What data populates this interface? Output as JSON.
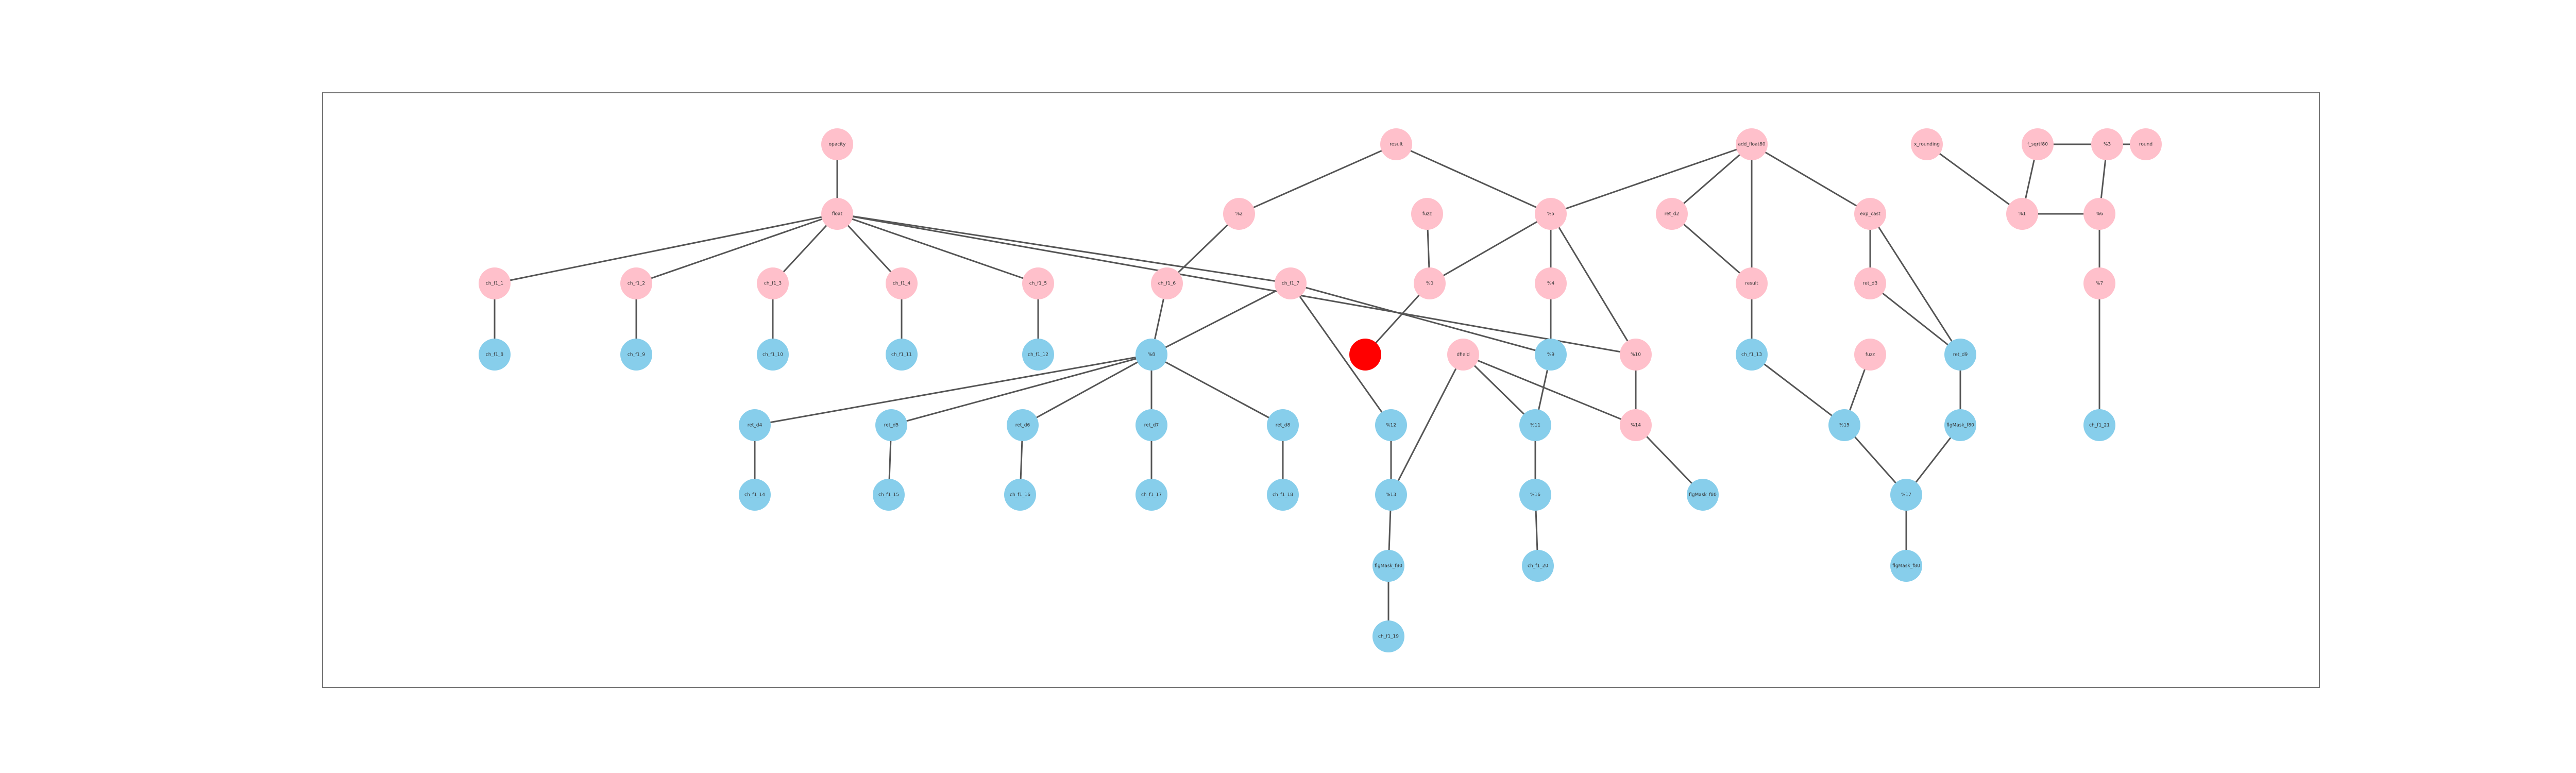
{
  "colors": {
    "pink": "#FFC0CB",
    "blue": "#87CEEB",
    "red": "#FF0000",
    "edge": "#555555",
    "frame": "#777777"
  },
  "graph": {
    "nodes": [
      {
        "id": "n1",
        "label": "opacity",
        "color": "pink"
      },
      {
        "id": "n2",
        "label": "result",
        "color": "pink"
      },
      {
        "id": "n3",
        "label": "add_float80",
        "color": "pink"
      },
      {
        "id": "n4",
        "label": "x_rounding",
        "color": "pink"
      },
      {
        "id": "n5",
        "label": "f_sqrtf80",
        "color": "pink"
      },
      {
        "id": "n6",
        "label": "round",
        "color": "pink"
      },
      {
        "id": "n7",
        "label": "fuzz",
        "color": "pink"
      },
      {
        "id": "n8",
        "label": "float",
        "color": "pink"
      },
      {
        "id": "n9",
        "label": "%2",
        "color": "pink"
      },
      {
        "id": "n10",
        "label": "%5",
        "color": "pink"
      },
      {
        "id": "n11",
        "label": "ret_d2",
        "color": "pink"
      },
      {
        "id": "n12",
        "label": "%0",
        "color": "pink"
      },
      {
        "id": "n13",
        "label": "exp_cast",
        "color": "pink"
      },
      {
        "id": "n14",
        "label": "%1",
        "color": "pink"
      },
      {
        "id": "n15",
        "label": "%3",
        "color": "pink"
      },
      {
        "id": "n16",
        "label": "ch_f1_1",
        "color": "pink"
      },
      {
        "id": "n17",
        "label": "ch_f1_2",
        "color": "pink"
      },
      {
        "id": "n18",
        "label": "ch_f1_3",
        "color": "pink"
      },
      {
        "id": "n19",
        "label": "ch_f1_4",
        "color": "pink"
      },
      {
        "id": "n20",
        "label": "ch_f1_5",
        "color": "pink"
      },
      {
        "id": "n21",
        "label": "ch_f1_6",
        "color": "pink"
      },
      {
        "id": "n22",
        "label": "ch_f1_7",
        "color": "pink"
      },
      {
        "id": "n23",
        "label": "%4",
        "color": "pink"
      },
      {
        "id": "n24",
        "label": "result",
        "color": "pink"
      },
      {
        "id": "n25",
        "label": "%7",
        "color": "pink"
      },
      {
        "id": "n26",
        "label": "ret_d3",
        "color": "pink"
      },
      {
        "id": "n27",
        "label": "%6",
        "color": "pink"
      },
      {
        "id": "n28",
        "label": "ch_f1_8",
        "color": "blue"
      },
      {
        "id": "n29",
        "label": "ch_f1_9",
        "color": "blue"
      },
      {
        "id": "n30",
        "label": "ch_f1_10",
        "color": "blue"
      },
      {
        "id": "n31",
        "label": "ch_f1_11",
        "color": "blue"
      },
      {
        "id": "n32",
        "label": "ch_f1_12",
        "color": "blue"
      },
      {
        "id": "n33",
        "label": "%8",
        "color": "blue"
      },
      {
        "id": "n34",
        "label": "",
        "color": "red"
      },
      {
        "id": "n35",
        "label": "dfield",
        "color": "pink"
      },
      {
        "id": "n36",
        "label": "%9",
        "color": "blue"
      },
      {
        "id": "n37",
        "label": "%10",
        "color": "pink"
      },
      {
        "id": "n38",
        "label": "ch_f1_13",
        "color": "blue"
      },
      {
        "id": "n39",
        "label": "fuzz",
        "color": "pink"
      },
      {
        "id": "n40",
        "label": "%11",
        "color": "blue"
      },
      {
        "id": "n41",
        "label": "ret_d4",
        "color": "blue"
      },
      {
        "id": "n42",
        "label": "ret_d5",
        "color": "blue"
      },
      {
        "id": "n43",
        "label": "ret_d6",
        "color": "blue"
      },
      {
        "id": "n44",
        "label": "ret_d7",
        "color": "blue"
      },
      {
        "id": "n45",
        "label": "ret_d8",
        "color": "blue"
      },
      {
        "id": "n46",
        "label": "ret_d9",
        "color": "blue"
      },
      {
        "id": "n47",
        "label": "%12",
        "color": "blue"
      },
      {
        "id": "n48",
        "label": "%13",
        "color": "blue"
      },
      {
        "id": "n49",
        "label": "%14",
        "color": "pink"
      },
      {
        "id": "n50",
        "label": "%15",
        "color": "blue"
      },
      {
        "id": "n51",
        "label": "ch_f1_14",
        "color": "blue"
      },
      {
        "id": "n52",
        "label": "ch_f1_15",
        "color": "blue"
      },
      {
        "id": "n53",
        "label": "ch_f1_16",
        "color": "blue"
      },
      {
        "id": "n54",
        "label": "ch_f1_17",
        "color": "blue"
      },
      {
        "id": "n55",
        "label": "ch_f1_18",
        "color": "blue"
      },
      {
        "id": "n56",
        "label": "%16",
        "color": "blue"
      },
      {
        "id": "n57",
        "label": "flgMask_f80",
        "color": "blue"
      },
      {
        "id": "n58",
        "label": "flgMask_f80",
        "color": "blue"
      },
      {
        "id": "n59",
        "label": "%17",
        "color": "blue"
      },
      {
        "id": "n60",
        "label": "flgMask_f80",
        "color": "blue"
      },
      {
        "id": "n61",
        "label": "flgMask_f80",
        "color": "blue"
      },
      {
        "id": "n62",
        "label": "ch_f1_19",
        "color": "blue"
      },
      {
        "id": "n63",
        "label": "ch_f1_20",
        "color": "blue"
      },
      {
        "id": "n64",
        "label": "ch_f1_21",
        "color": "blue"
      }
    ],
    "edges": [
      [
        "n1",
        "n8"
      ],
      [
        "n8",
        "n16"
      ],
      [
        "n8",
        "n17"
      ],
      [
        "n8",
        "n18"
      ],
      [
        "n8",
        "n19"
      ],
      [
        "n8",
        "n20"
      ],
      [
        "n8",
        "n22"
      ],
      [
        "n8",
        "n37"
      ],
      [
        "n16",
        "n28"
      ],
      [
        "n17",
        "n29"
      ],
      [
        "n18",
        "n30"
      ],
      [
        "n19",
        "n31"
      ],
      [
        "n20",
        "n32"
      ],
      [
        "n2",
        "n9"
      ],
      [
        "n2",
        "n10"
      ],
      [
        "n9",
        "n21"
      ],
      [
        "n21",
        "n33"
      ],
      [
        "n33",
        "n41"
      ],
      [
        "n33",
        "n42"
      ],
      [
        "n33",
        "n43"
      ],
      [
        "n33",
        "n44"
      ],
      [
        "n33",
        "n45"
      ],
      [
        "n41",
        "n51"
      ],
      [
        "n42",
        "n52"
      ],
      [
        "n43",
        "n53"
      ],
      [
        "n44",
        "n54"
      ],
      [
        "n45",
        "n55"
      ],
      [
        "n22",
        "n33"
      ],
      [
        "n22",
        "n47"
      ],
      [
        "n22",
        "n36"
      ],
      [
        "n3",
        "n10"
      ],
      [
        "n3",
        "n11"
      ],
      [
        "n3",
        "n24"
      ],
      [
        "n3",
        "n13"
      ],
      [
        "n10",
        "n12"
      ],
      [
        "n10",
        "n23"
      ],
      [
        "n10",
        "n37"
      ],
      [
        "n23",
        "n36"
      ],
      [
        "n12",
        "n34"
      ],
      [
        "n7",
        "n12"
      ],
      [
        "n35",
        "n48"
      ],
      [
        "n35",
        "n49"
      ],
      [
        "n35",
        "n40"
      ],
      [
        "n36",
        "n40"
      ],
      [
        "n37",
        "n49"
      ],
      [
        "n49",
        "n58"
      ],
      [
        "n48",
        "n57"
      ],
      [
        "n57",
        "n62"
      ],
      [
        "n47",
        "n48"
      ],
      [
        "n40",
        "n56"
      ],
      [
        "n56",
        "n63"
      ],
      [
        "n11",
        "n24"
      ],
      [
        "n24",
        "n38"
      ],
      [
        "n38",
        "n50"
      ],
      [
        "n13",
        "n26"
      ],
      [
        "n13",
        "n46"
      ],
      [
        "n26",
        "n46"
      ],
      [
        "n46",
        "n60"
      ],
      [
        "n60",
        "n59"
      ],
      [
        "n50",
        "n59"
      ],
      [
        "n59",
        "n61"
      ],
      [
        "n39",
        "n50"
      ],
      [
        "n4",
        "n14"
      ],
      [
        "n5",
        "n14"
      ],
      [
        "n5",
        "n15"
      ],
      [
        "n6",
        "n15"
      ],
      [
        "n14",
        "n27"
      ],
      [
        "n15",
        "n27"
      ],
      [
        "n27",
        "n25"
      ],
      [
        "n25",
        "n64"
      ]
    ]
  }
}
